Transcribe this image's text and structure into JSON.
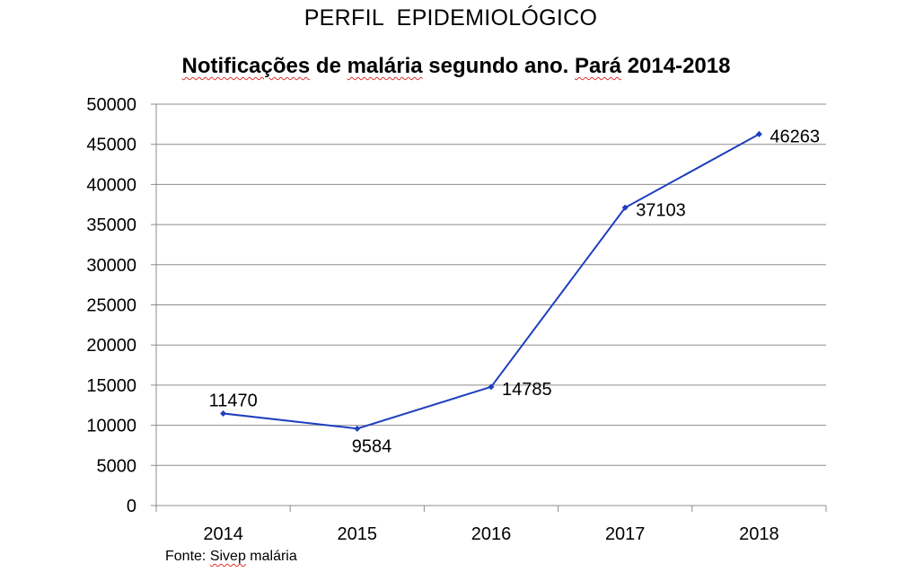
{
  "slide": {
    "heading": "PERFIL  EPIDEMIOLÓGICO"
  },
  "title_parts": {
    "a": "Notificações",
    "b": " de ",
    "c": "malária",
    "d": " segundo ano. ",
    "e": "Pará",
    "f": " 2014-2018"
  },
  "source_parts": {
    "a": "Fonte: ",
    "b": "Sivep",
    "c": " malária"
  },
  "chart_data": {
    "type": "line",
    "title": "Notificações de malária segundo ano. Pará 2014-2018",
    "xlabel": "",
    "ylabel": "",
    "categories": [
      "2014",
      "2015",
      "2016",
      "2017",
      "2018"
    ],
    "series": [
      {
        "values": [
          11470,
          9584,
          14785,
          37103,
          46263
        ],
        "data_labels": [
          "11470",
          "9584",
          "14785",
          "37103",
          "46263"
        ],
        "color": "#1f3fbf"
      }
    ],
    "ylim": [
      0,
      50000
    ],
    "yticks": [
      0,
      5000,
      10000,
      15000,
      20000,
      25000,
      30000,
      35000,
      40000,
      45000,
      50000
    ],
    "ytick_labels": [
      "0",
      "5000",
      "10000",
      "15000",
      "20000",
      "25000",
      "30000",
      "35000",
      "40000",
      "45000",
      "50000"
    ],
    "grid": true,
    "legend": "none",
    "source": "Fonte: Sivep malária"
  }
}
